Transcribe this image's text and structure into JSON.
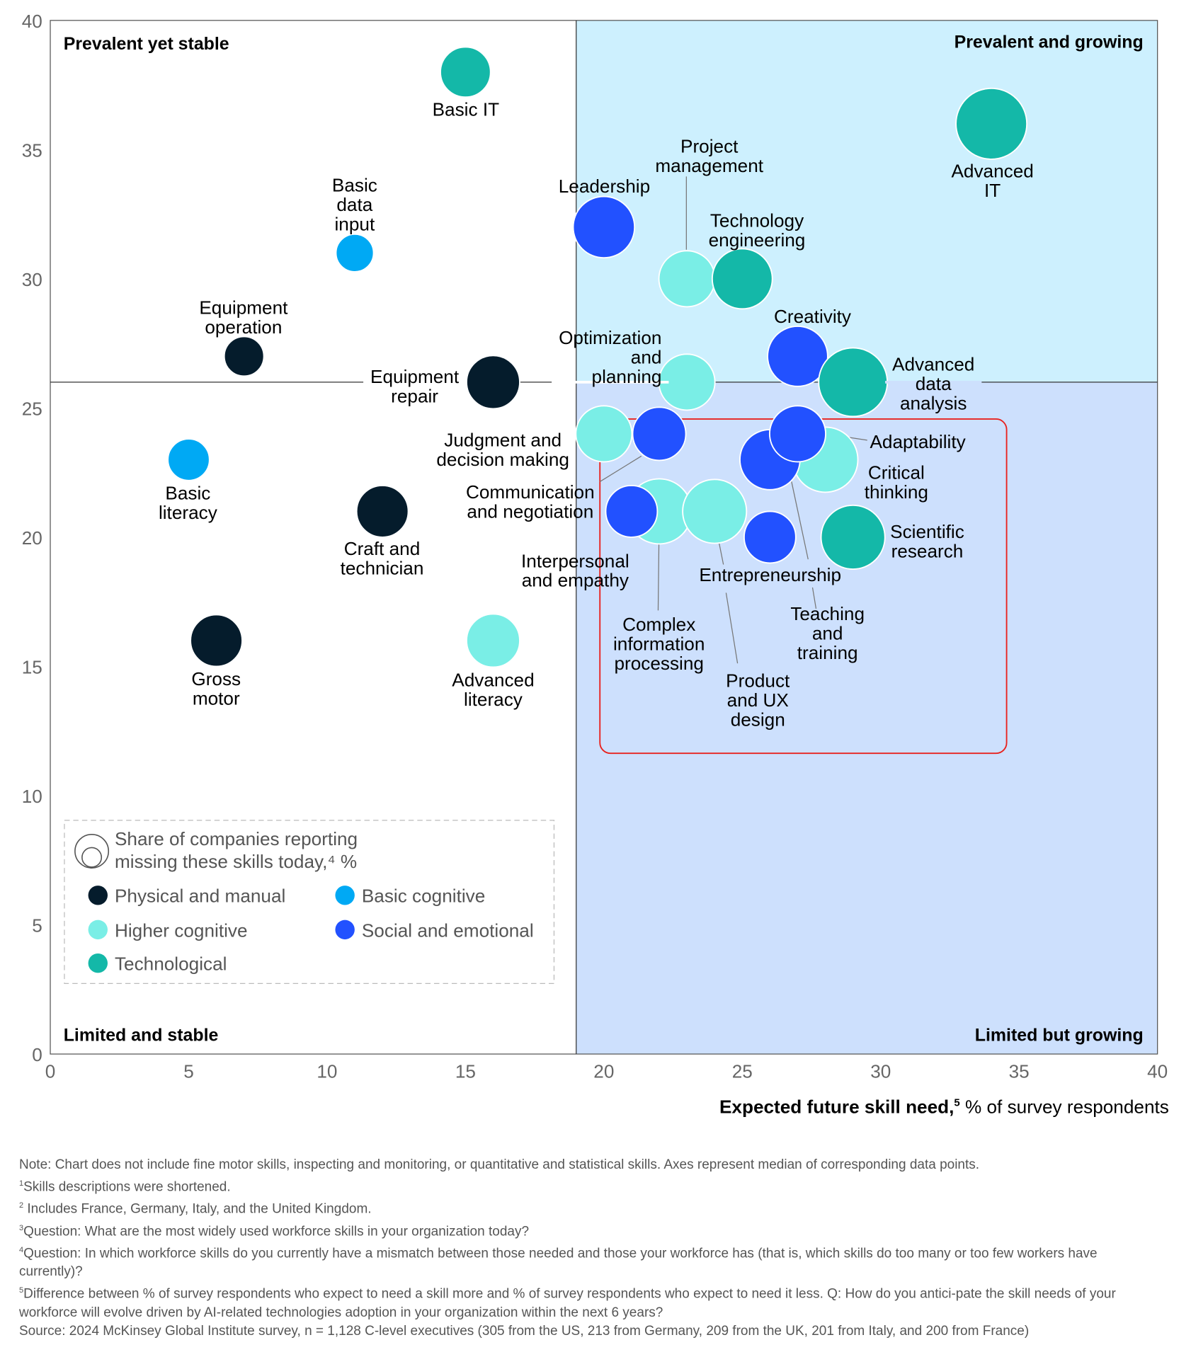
{
  "chart_data": {
    "type": "scatter",
    "subtype": "bubble",
    "xlabel_bold": "Expected future skill need,",
    "xlabel_sup": "5",
    "xlabel_rest": " % of survey respondents",
    "xlim": [
      0,
      40
    ],
    "ylim": [
      0,
      40
    ],
    "xticks": [
      0,
      5,
      10,
      15,
      20,
      25,
      30,
      35,
      40
    ],
    "yticks": [
      0,
      5,
      10,
      15,
      20,
      25,
      30,
      35,
      40
    ],
    "median_x": 19,
    "median_y": 26,
    "quadrants": {
      "top_left": "Prevalent yet stable",
      "top_right": "Prevalent and growing",
      "bottom_left": "Limited and stable",
      "bottom_right": "Limited but growing"
    },
    "categories": [
      {
        "name": "Physical and manual",
        "color": "#051c2c"
      },
      {
        "name": "Basic cognitive",
        "color": "#00a9f4"
      },
      {
        "name": "Higher cognitive",
        "color": "#7aeee6"
      },
      {
        "name": "Social and emotional",
        "color": "#2251ff"
      },
      {
        "name": "Technological",
        "color": "#14b8a8"
      }
    ],
    "size_legend": "Share of companies reporting missing these skills today,⁴ %",
    "size_legend_lines": [
      "Share of companies reporting",
      "missing these skills today,⁴ %"
    ],
    "points": [
      {
        "label": "Basic IT",
        "category": 4,
        "x": 15,
        "y": 38,
        "size": 16
      },
      {
        "label": "Advanced IT",
        "category": 4,
        "x": 34,
        "y": 36,
        "size": 32
      },
      {
        "label": "Basic data input",
        "category": 1,
        "x": 11,
        "y": 31,
        "size": 9
      },
      {
        "label": "Equipment operation",
        "category": 0,
        "x": 7,
        "y": 27,
        "size": 10
      },
      {
        "label": "Equipment repair",
        "category": 0,
        "x": 16,
        "y": 26,
        "size": 18
      },
      {
        "label": "Basic literacy",
        "category": 1,
        "x": 5,
        "y": 23,
        "size": 11
      },
      {
        "label": "Craft and technician",
        "category": 0,
        "x": 12,
        "y": 21,
        "size": 17
      },
      {
        "label": "Gross motor",
        "category": 0,
        "x": 6,
        "y": 16,
        "size": 17
      },
      {
        "label": "Advanced literacy",
        "category": 2,
        "x": 16,
        "y": 16,
        "size": 18
      },
      {
        "label": "Leadership",
        "category": 3,
        "x": 20,
        "y": 32,
        "size": 24
      },
      {
        "label": "Project management",
        "category": 2,
        "x": 23,
        "y": 30,
        "size": 20
      },
      {
        "label": "Technology engineering",
        "category": 4,
        "x": 25,
        "y": 30,
        "size": 23
      },
      {
        "label": "Creativity",
        "category": 3,
        "x": 27,
        "y": 27,
        "size": 23
      },
      {
        "label": "Optimization and planning",
        "category": 2,
        "x": 23,
        "y": 26,
        "size": 20
      },
      {
        "label": "Advanced data analysis",
        "category": 4,
        "x": 29,
        "y": 26,
        "size": 30
      },
      {
        "label": "Judgment and decision making",
        "category": 2,
        "x": 20,
        "y": 24,
        "size": 20
      },
      {
        "label": "Communication and negotiation",
        "category": 3,
        "x": 22,
        "y": 24,
        "size": 18
      },
      {
        "label": "Critical thinking",
        "category": 2,
        "x": 28,
        "y": 23,
        "size": 27
      },
      {
        "label": "Teaching and training",
        "category": 3,
        "x": 26,
        "y": 23,
        "size": 23
      },
      {
        "label": "Adaptability",
        "category": 3,
        "x": 27,
        "y": 24,
        "size": 20
      },
      {
        "label": "Complex information processing",
        "category": 2,
        "x": 22,
        "y": 21,
        "size": 27
      },
      {
        "label": "Product and UX design",
        "category": 2,
        "x": 24,
        "y": 21,
        "size": 26
      },
      {
        "label": "Interpersonal and empathy",
        "category": 3,
        "x": 21,
        "y": 21,
        "size": 17
      },
      {
        "label": "Entrepreneurship",
        "category": 3,
        "x": 26,
        "y": 20,
        "size": 17
      },
      {
        "label": "Scientific research",
        "category": 4,
        "x": 29,
        "y": 20,
        "size": 26
      }
    ]
  },
  "notes": [
    {
      "sup": "",
      "text": "Note: Chart does not include fine motor skills, inspecting and monitoring, or quantitative and statistical skills. Axes represent median of corresponding data points."
    },
    {
      "sup": "1",
      "text": "Skills descriptions were shortened."
    },
    {
      "sup": "2",
      "text": " Includes France, Germany, Italy, and the United Kingdom."
    },
    {
      "sup": "3",
      "text": "Question: What are the most widely used workforce skills in your organization today?"
    },
    {
      "sup": "4",
      "text": "Question: In which workforce skills do you currently have a mismatch between those needed and those your workforce has (that is, which skills do too many or too few workers have currently)?"
    },
    {
      "sup": "5",
      "text": "Difference between % of survey respondents who expect to need a skill more and % of survey respondents who expect to need it less. Q: How do you antici-pate the skill needs of your workforce will evolve driven by AI-related technologies adoption in your organization within the next 6 years?"
    },
    {
      "sup": "",
      "text": "Source: 2024 McKinsey Global Institute survey, n = 1,128 C-level executives (305 from the US, 213 from Germany, 209 from the UK, 201 from Italy, and 200 from France)"
    }
  ]
}
